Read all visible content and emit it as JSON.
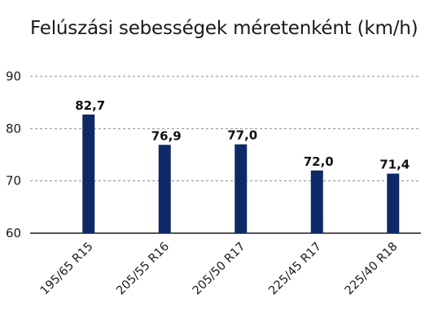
{
  "chart_data": {
    "type": "bar",
    "title": "Felúszási sebességek méretenként (km/h)",
    "categories": [
      "195/65 R15",
      "205/55 R16",
      "205/50 R17",
      "225/45 R17",
      "225/40 R18"
    ],
    "values": [
      82.7,
      76.9,
      77.0,
      72.0,
      71.4
    ],
    "value_labels": [
      "82,7",
      "76,9",
      "77,0",
      "72,0",
      "71,4"
    ],
    "xlabel": "",
    "ylabel": "",
    "ylim": [
      60,
      90
    ],
    "yticks": [
      60,
      70,
      80,
      90
    ],
    "grid": true,
    "legend": "none",
    "bar_color": "#0d2a66",
    "grid_color": "#8a8a8a"
  }
}
